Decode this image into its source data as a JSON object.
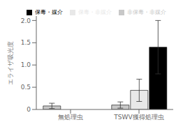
{
  "chart_data": {
    "type": "bar",
    "ylabel": "エライザ吸光度",
    "categories": [
      "無処理虫",
      "TSWV獲得処理虫"
    ],
    "series": [
      {
        "name": "非保毒・非媒介",
        "color": "#c8c8c8",
        "values": [
          0.08,
          0.1
        ],
        "errors": [
          0.06,
          0.07
        ]
      },
      {
        "name": "保毒・非媒介",
        "color": "#e8e8e8",
        "values": [
          null,
          0.43
        ],
        "errors": [
          null,
          0.25
        ]
      },
      {
        "name": "保毒・媒介",
        "color": "#000000",
        "values": [
          null,
          1.4
        ],
        "errors": [
          null,
          0.6
        ]
      }
    ],
    "ylim": [
      0,
      2.1
    ],
    "yticks": [
      0,
      0.5,
      {
        "value": 1,
        "label": "1.0"
      },
      {
        "value": 1.5,
        "label": "1.5"
      },
      {
        "value": 2,
        "label": "2.0"
      }
    ],
    "grid": false,
    "legend": "upper right"
  }
}
